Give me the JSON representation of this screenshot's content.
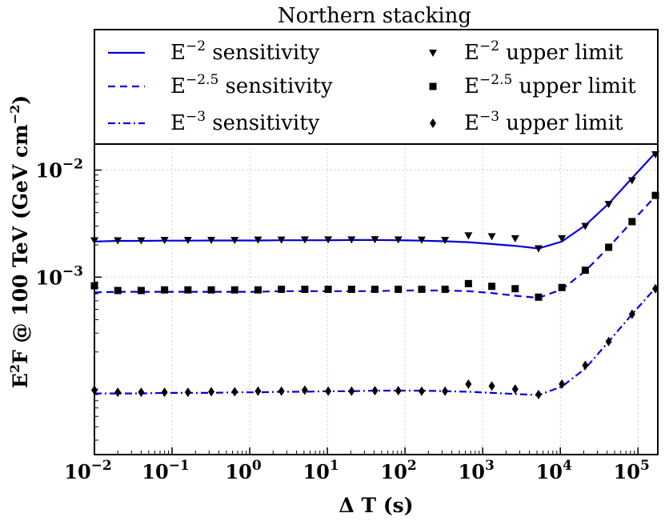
{
  "chart_data": {
    "type": "line",
    "title": "Northern stacking",
    "xlabel": "Δ T (s)",
    "ylabel_parts": {
      "base": "E",
      "sup": "2",
      "mid": "F @ 100 TeV (GeV cm",
      "sup2": "−2",
      "end": ")"
    },
    "x_scale": "log",
    "y_scale": "log",
    "xlim": [
      0.01,
      180000
    ],
    "ylim": [
      2.2e-05,
      0.0175
    ],
    "grid": true,
    "legend_position": "top (above plot area, two columns)",
    "x_ticks": [
      {
        "value": 0.01,
        "base": "10",
        "exp": "−2"
      },
      {
        "value": 0.1,
        "base": "10",
        "exp": "−1"
      },
      {
        "value": 1,
        "base": "10",
        "exp": "0"
      },
      {
        "value": 10,
        "base": "10",
        "exp": "1"
      },
      {
        "value": 100,
        "base": "10",
        "exp": "2"
      },
      {
        "value": 1000,
        "base": "10",
        "exp": "3"
      },
      {
        "value": 10000,
        "base": "10",
        "exp": "4"
      },
      {
        "value": 100000,
        "base": "10",
        "exp": "5"
      }
    ],
    "y_ticks": [
      {
        "value": 0.001,
        "base": "10",
        "exp": "−3"
      },
      {
        "value": 0.01,
        "base": "10",
        "exp": "−2"
      }
    ],
    "x": [
      0.01,
      0.02,
      0.04,
      0.08,
      0.16,
      0.32,
      0.64,
      1.28,
      2.56,
      5.12,
      10.24,
      20.48,
      40.96,
      81.92,
      163.84,
      327.68,
      655.36,
      1310.72,
      2621.44,
      5242.88,
      10485.76,
      20971.52,
      41943.04,
      83886.08,
      167772.16
    ],
    "series": [
      {
        "name": "E−2 sensitivity",
        "label_base": "E",
        "label_exp": "−2",
        "label_rest": " sensitivity",
        "kind": "line",
        "color": "#0000dd",
        "dash": "solid",
        "values": [
          0.00215,
          0.00218,
          0.00218,
          0.00219,
          0.00219,
          0.0022,
          0.0022,
          0.0022,
          0.00221,
          0.00221,
          0.00221,
          0.00222,
          0.00222,
          0.00221,
          0.00219,
          0.00216,
          0.00212,
          0.00204,
          0.00196,
          0.00185,
          0.00215,
          0.00305,
          0.00485,
          0.0084,
          0.0145
        ]
      },
      {
        "name": "E−2.5 sensitivity",
        "label_base": "E",
        "label_exp": "−2.5",
        "label_rest": " sensitivity",
        "kind": "line",
        "color": "#0000dd",
        "dash": "dashed",
        "values": [
          0.00072,
          0.00073,
          0.00073,
          0.00073,
          0.00073,
          0.00073,
          0.00073,
          0.00073,
          0.00074,
          0.00074,
          0.00074,
          0.00074,
          0.00074,
          0.00075,
          0.00075,
          0.00075,
          0.00074,
          0.00071,
          0.00067,
          0.00064,
          0.00077,
          0.00114,
          0.0019,
          0.0033,
          0.0057
        ]
      },
      {
        "name": "E−3 sensitivity",
        "label_base": "E",
        "label_exp": "−3",
        "label_rest": " sensitivity",
        "kind": "line",
        "color": "#0000dd",
        "dash": "dashdot",
        "values": [
          8.2e-05,
          8.2e-05,
          8.2e-05,
          8.3e-05,
          8.3e-05,
          8.3e-05,
          8.4e-05,
          8.4e-05,
          8.5e-05,
          8.5e-05,
          8.6e-05,
          8.6e-05,
          8.7e-05,
          8.7e-05,
          8.7e-05,
          8.6e-05,
          8.5e-05,
          8.3e-05,
          8.1e-05,
          7.9e-05,
          9.5e-05,
          0.00014,
          0.00025,
          0.00045,
          0.00079
        ]
      },
      {
        "name": "E−2 upper limit",
        "label_base": "E",
        "label_exp": "−2",
        "label_rest": " upper limit",
        "kind": "marker",
        "marker": "triangle-down",
        "color": "#000000",
        "values": [
          0.0022,
          0.0022,
          0.0022,
          0.00222,
          0.00222,
          0.00222,
          0.00222,
          0.00223,
          0.00223,
          0.00224,
          0.00224,
          0.00224,
          0.00225,
          0.00224,
          0.00223,
          0.00222,
          0.00245,
          0.0024,
          0.0023,
          0.00185,
          0.0023,
          0.003,
          0.0048,
          0.008,
          0.014
        ]
      },
      {
        "name": "E−2.5 upper limit",
        "label_base": "E",
        "label_exp": "−2.5",
        "label_rest": " upper limit",
        "kind": "marker",
        "marker": "square",
        "color": "#000000",
        "values": [
          0.00083,
          0.00075,
          0.00075,
          0.00076,
          0.00076,
          0.00076,
          0.00076,
          0.00076,
          0.00077,
          0.00077,
          0.00077,
          0.00077,
          0.00077,
          0.00077,
          0.00077,
          0.00077,
          0.00087,
          0.00082,
          0.00078,
          0.00065,
          0.0008,
          0.00116,
          0.0019,
          0.0033,
          0.0058
        ]
      },
      {
        "name": "E−3 upper limit",
        "label_base": "E",
        "label_exp": "−3",
        "label_rest": " upper limit",
        "kind": "marker",
        "marker": "diamond",
        "color": "#000000",
        "values": [
          8.8e-05,
          8.4e-05,
          8.4e-05,
          8.4e-05,
          8.4e-05,
          8.5e-05,
          8.5e-05,
          8.6e-05,
          8.6e-05,
          8.8e-05,
          8.6e-05,
          8.6e-05,
          8.7e-05,
          8.7e-05,
          8.6e-05,
          8.6e-05,
          0.0001,
          9.6e-05,
          9e-05,
          8e-05,
          0.0001,
          0.00015,
          0.00025,
          0.00045,
          0.00078
        ]
      }
    ]
  }
}
